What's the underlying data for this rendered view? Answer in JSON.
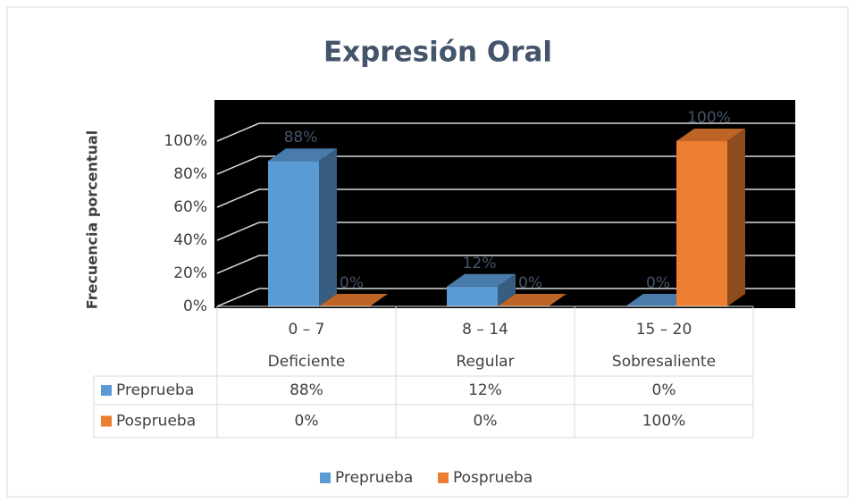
{
  "chart_data": {
    "type": "bar3d",
    "title": "Expresión Oral",
    "y_label": "Frecuencia porcentual",
    "categories": [
      "0 – 7",
      "8 – 14",
      "15 – 20"
    ],
    "category_labels": [
      "Deficiente",
      "Regular",
      "Sobresaliente"
    ],
    "series": [
      {
        "name": "Preprueba",
        "color": "#5b9bd5",
        "values": [
          88,
          12,
          0
        ],
        "value_labels": [
          "88%",
          "12%",
          "0%"
        ]
      },
      {
        "name": "Posprueba",
        "color": "#ed7d31",
        "values": [
          0,
          0,
          100
        ],
        "value_labels": [
          "0%",
          "0%",
          "100%"
        ]
      }
    ],
    "ylim": [
      0,
      120
    ],
    "yticks": [
      {
        "value": 0,
        "label": "0%"
      },
      {
        "value": 20,
        "label": "20%"
      },
      {
        "value": 40,
        "label": "40%"
      },
      {
        "value": 60,
        "label": "60%"
      },
      {
        "value": 80,
        "label": "80%"
      },
      {
        "value": 100,
        "label": "100%"
      }
    ],
    "grid": true,
    "data_table": true,
    "legend": "bottom"
  }
}
